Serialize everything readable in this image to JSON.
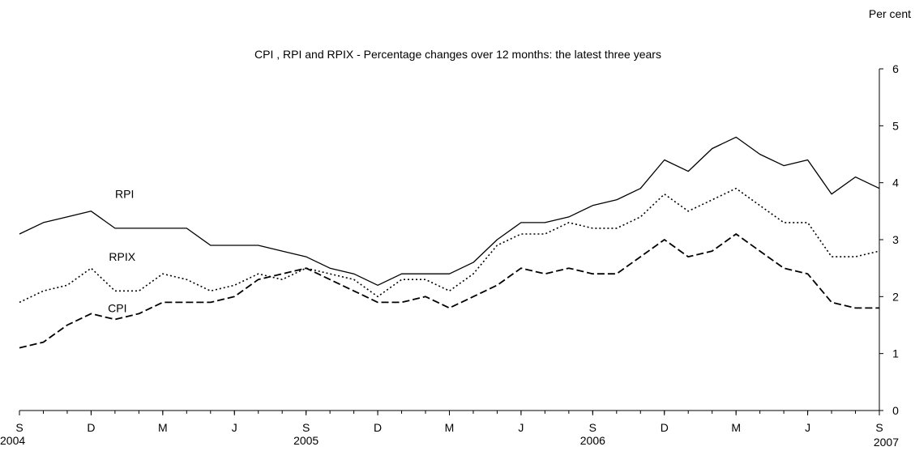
{
  "chart_data": {
    "type": "line",
    "title": "CPI , RPI and RPIX - Percentage changes over 12 months: the latest three years",
    "ylabel": "Per cent",
    "ylim": [
      0,
      6
    ],
    "yticks": [
      0,
      1,
      2,
      3,
      4,
      5,
      6
    ],
    "grid": false,
    "legend": "inline labels",
    "x_months": [
      "2004-09",
      "2004-10",
      "2004-11",
      "2004-12",
      "2005-01",
      "2005-02",
      "2005-03",
      "2005-04",
      "2005-05",
      "2005-06",
      "2005-07",
      "2005-08",
      "2005-09",
      "2005-10",
      "2005-11",
      "2005-12",
      "2006-01",
      "2006-02",
      "2006-03",
      "2006-04",
      "2006-05",
      "2006-06",
      "2006-07",
      "2006-08",
      "2006-09",
      "2006-10",
      "2006-11",
      "2006-12",
      "2007-01",
      "2007-02",
      "2007-03",
      "2007-04",
      "2007-05",
      "2007-06",
      "2007-07",
      "2007-08",
      "2007-09"
    ],
    "x_tick_labels": [
      {
        "month": "2004-09",
        "label": "S",
        "year": "2004"
      },
      {
        "month": "2004-12",
        "label": "D",
        "year": ""
      },
      {
        "month": "2005-03",
        "label": "M",
        "year": ""
      },
      {
        "month": "2005-06",
        "label": "J",
        "year": ""
      },
      {
        "month": "2005-09",
        "label": "S",
        "year": "2005"
      },
      {
        "month": "2005-12",
        "label": "D",
        "year": ""
      },
      {
        "month": "2006-03",
        "label": "M",
        "year": ""
      },
      {
        "month": "2006-06",
        "label": "J",
        "year": ""
      },
      {
        "month": "2006-09",
        "label": "S",
        "year": "2006"
      },
      {
        "month": "2006-12",
        "label": "D",
        "year": ""
      },
      {
        "month": "2007-03",
        "label": "M",
        "year": ""
      },
      {
        "month": "2007-06",
        "label": "J",
        "year": ""
      },
      {
        "month": "2007-09",
        "label": "S",
        "year": "2007"
      }
    ],
    "series": [
      {
        "name": "RPI",
        "style": "solid",
        "color": "#000000",
        "values": [
          3.1,
          3.3,
          3.4,
          3.5,
          3.2,
          3.2,
          3.2,
          3.2,
          2.9,
          2.9,
          2.9,
          2.8,
          2.7,
          2.5,
          2.4,
          2.2,
          2.4,
          2.4,
          2.4,
          2.6,
          3.0,
          3.3,
          3.3,
          3.4,
          3.6,
          3.7,
          3.9,
          4.4,
          4.2,
          4.6,
          4.8,
          4.5,
          4.3,
          4.4,
          3.8,
          4.1,
          3.9
        ]
      },
      {
        "name": "RPIX",
        "style": "dotted",
        "color": "#000000",
        "values": [
          1.9,
          2.1,
          2.2,
          2.5,
          2.1,
          2.1,
          2.4,
          2.3,
          2.1,
          2.2,
          2.4,
          2.3,
          2.5,
          2.4,
          2.3,
          2.0,
          2.3,
          2.3,
          2.1,
          2.4,
          2.9,
          3.1,
          3.1,
          3.3,
          3.2,
          3.2,
          3.4,
          3.8,
          3.5,
          3.7,
          3.9,
          3.6,
          3.3,
          3.3,
          2.7,
          2.7,
          2.8
        ]
      },
      {
        "name": "CPI",
        "style": "dashed",
        "color": "#000000",
        "values": [
          1.1,
          1.2,
          1.5,
          1.7,
          1.6,
          1.7,
          1.9,
          1.9,
          1.9,
          2.0,
          2.3,
          2.4,
          2.5,
          2.3,
          2.1,
          1.9,
          1.9,
          2.0,
          1.8,
          2.0,
          2.2,
          2.5,
          2.4,
          2.5,
          2.4,
          2.4,
          2.7,
          3.0,
          2.7,
          2.8,
          3.1,
          2.8,
          2.5,
          2.4,
          1.9,
          1.8,
          1.8
        ]
      }
    ]
  }
}
